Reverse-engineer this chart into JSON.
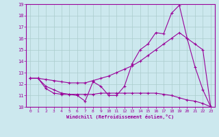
{
  "xlabel": "Windchill (Refroidissement éolien,°C)",
  "x_values": [
    0,
    1,
    2,
    3,
    4,
    5,
    6,
    7,
    8,
    9,
    10,
    11,
    12,
    13,
    14,
    15,
    16,
    17,
    18,
    19,
    20,
    21,
    22,
    23
  ],
  "line1": [
    12.5,
    12.5,
    11.6,
    11.2,
    11.1,
    11.1,
    11.0,
    10.5,
    12.2,
    11.8,
    11.0,
    11.0,
    11.8,
    13.8,
    15.0,
    15.5,
    16.5,
    16.4,
    18.2,
    18.9,
    16.0,
    13.5,
    11.5,
    10.0
  ],
  "line2": [
    12.5,
    12.5,
    12.4,
    12.3,
    12.2,
    12.1,
    12.1,
    12.1,
    12.3,
    12.5,
    12.7,
    13.0,
    13.3,
    13.6,
    14.0,
    14.5,
    15.0,
    15.5,
    16.0,
    16.5,
    16.0,
    15.5,
    15.0,
    10.0
  ],
  "line3": [
    12.5,
    12.5,
    11.8,
    11.5,
    11.2,
    11.1,
    11.1,
    11.1,
    11.1,
    11.2,
    11.2,
    11.2,
    11.2,
    11.2,
    11.2,
    11.2,
    11.2,
    11.1,
    11.0,
    10.8,
    10.6,
    10.5,
    10.3,
    10.0
  ],
  "line_color": "#990099",
  "bg_color": "#cce8ee",
  "grid_color": "#aacccc",
  "ylim": [
    10,
    19
  ],
  "xlim": [
    -0.5,
    23.5
  ],
  "yticks": [
    10,
    11,
    12,
    13,
    14,
    15,
    16,
    17,
    18,
    19
  ],
  "xticks": [
    0,
    1,
    2,
    3,
    4,
    5,
    6,
    7,
    8,
    9,
    10,
    11,
    12,
    13,
    14,
    15,
    16,
    17,
    18,
    19,
    20,
    21,
    22,
    23
  ]
}
